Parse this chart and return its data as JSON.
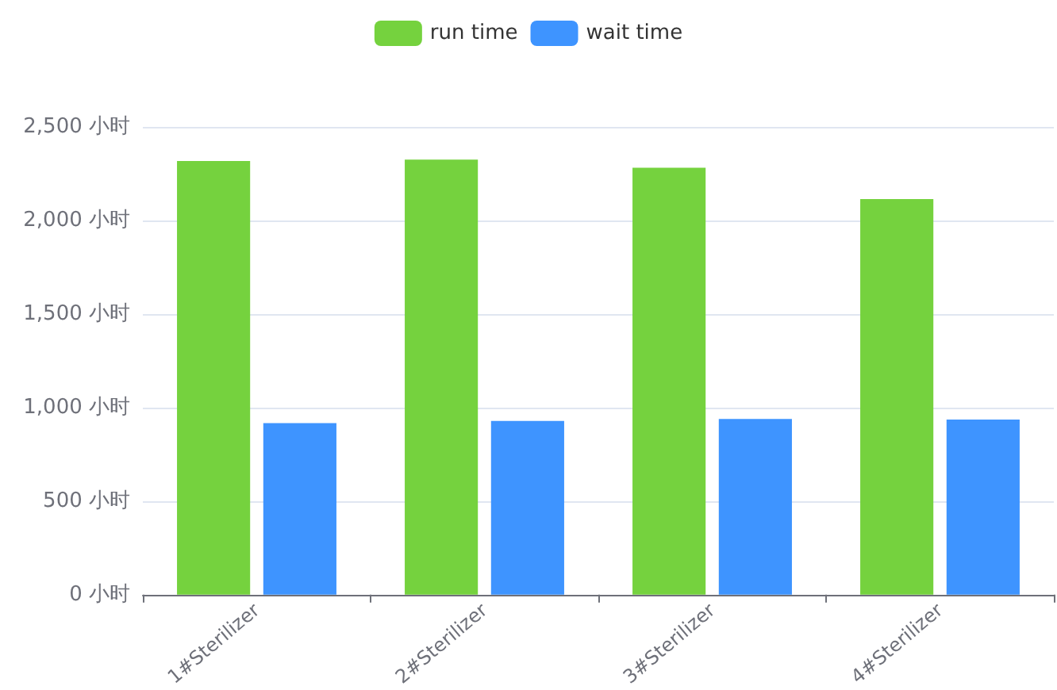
{
  "chart_data": {
    "type": "bar",
    "categories": [
      "1#Sterilizer",
      "2#Sterilizer",
      "3#Sterilizer",
      "4#Sterilizer"
    ],
    "series": [
      {
        "name": "run time",
        "color": "#75d23e",
        "values": [
          2318,
          2325,
          2282,
          2114
        ]
      },
      {
        "name": "wait time",
        "color": "#3e94ff",
        "values": [
          917,
          928,
          939,
          936
        ]
      }
    ],
    "ylim": [
      0,
      2500
    ],
    "yticks": [
      {
        "value": 0,
        "label": "0 小时"
      },
      {
        "value": 500,
        "label": "500 小时"
      },
      {
        "value": 1000,
        "label": "1,000 小时"
      },
      {
        "value": 1500,
        "label": "1,500 小时"
      },
      {
        "value": 2000,
        "label": "2,000 小时"
      },
      {
        "value": 2500,
        "label": "2,500 小时"
      }
    ],
    "grid": "y",
    "legend": "top"
  }
}
